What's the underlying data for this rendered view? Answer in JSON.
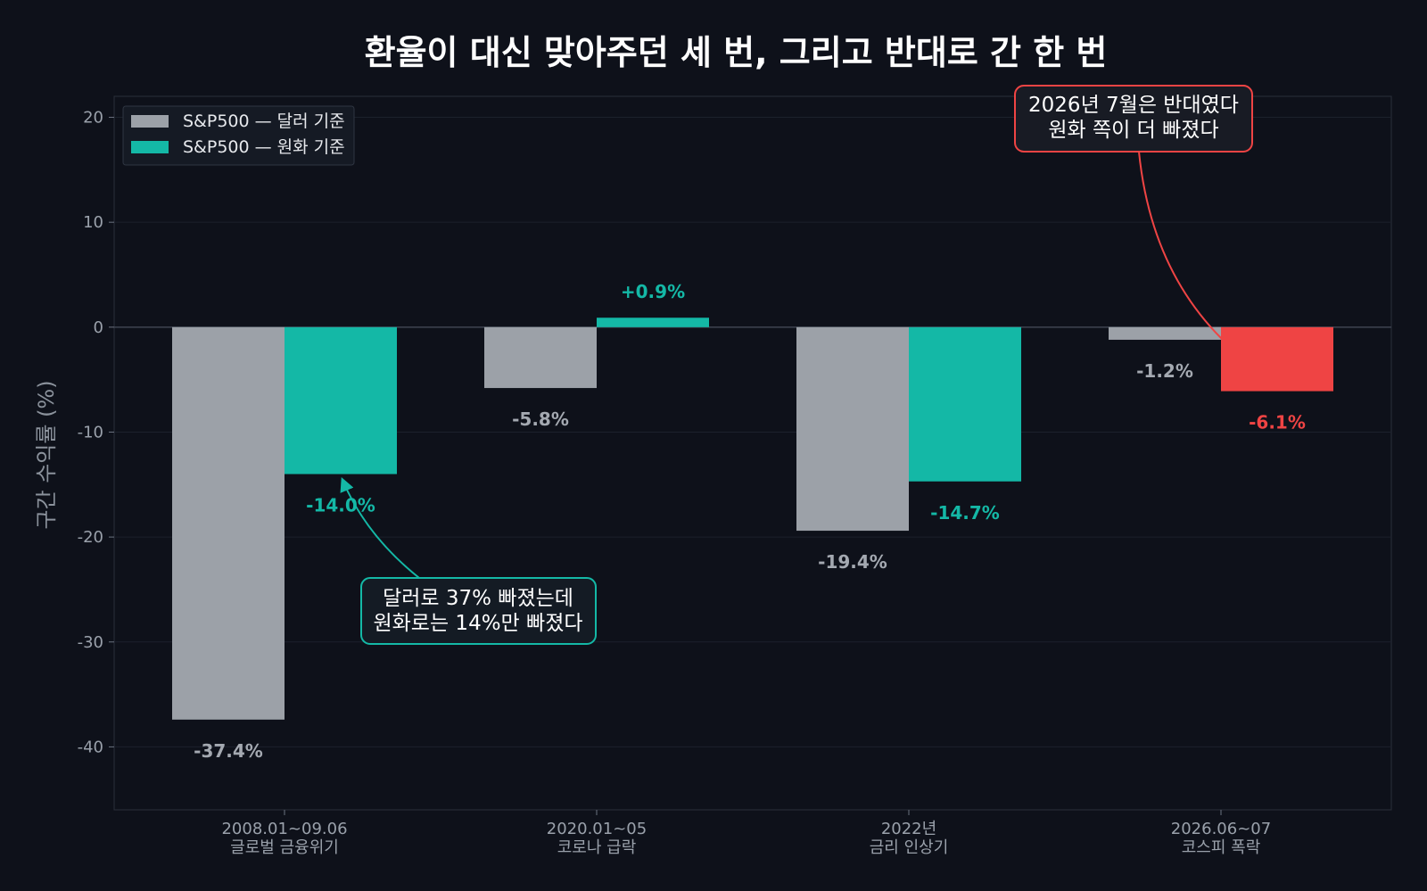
{
  "chart_data": {
    "type": "bar",
    "title": "환율이 대신 맞아주던 세 번, 그리고 반대로 간 한 번",
    "ylabel": "구간 수익률 (%)",
    "xlabel": "",
    "ylim": [
      -46,
      22
    ],
    "yticks": [
      20,
      10,
      0,
      -10,
      -20,
      -30,
      -40
    ],
    "grid": true,
    "legend_position": "top-left",
    "categories": [
      {
        "period": "2008.01~09.06",
        "name": "글로벌 금융위기"
      },
      {
        "period": "2020.01~05",
        "name": "코로나 급락"
      },
      {
        "period": "2022년",
        "name": "금리 인상기"
      },
      {
        "period": "2026.06~07",
        "name": "코스피 폭락"
      }
    ],
    "series": [
      {
        "name": "S&P500 — 달러 기준",
        "color": "#9ca1a8",
        "values": [
          -37.4,
          -5.8,
          -19.4,
          -1.2
        ],
        "labels": [
          "-37.4%",
          "-5.8%",
          "-19.4%",
          "-1.2%"
        ],
        "label_colors": [
          "#a4a9b1",
          "#a4a9b1",
          "#a4a9b1",
          "#a4a9b1"
        ]
      },
      {
        "name": "S&P500 — 원화 기준",
        "color": "#14b8a6",
        "values": [
          -14.0,
          0.9,
          -14.7,
          -6.1
        ],
        "bar_colors": [
          "#14b8a6",
          "#14b8a6",
          "#14b8a6",
          "#ef4444"
        ],
        "labels": [
          "-14.0%",
          "+0.9%",
          "-14.7%",
          "-6.1%"
        ],
        "label_colors": [
          "#14b8a6",
          "#14b8a6",
          "#14b8a6",
          "#ef4444"
        ]
      }
    ],
    "annotations": [
      {
        "lines": [
          "달러로 37% 빠졌는데",
          "원화로는 14%만 빠졌다"
        ],
        "color": "#14b8a6",
        "target_category": 0,
        "target_series": 1
      },
      {
        "lines": [
          "2026년 7월은 반대였다",
          "원화 쪽이 더 빠졌다"
        ],
        "color": "#ef4444",
        "target_category": 3,
        "target_series": 1
      }
    ]
  }
}
